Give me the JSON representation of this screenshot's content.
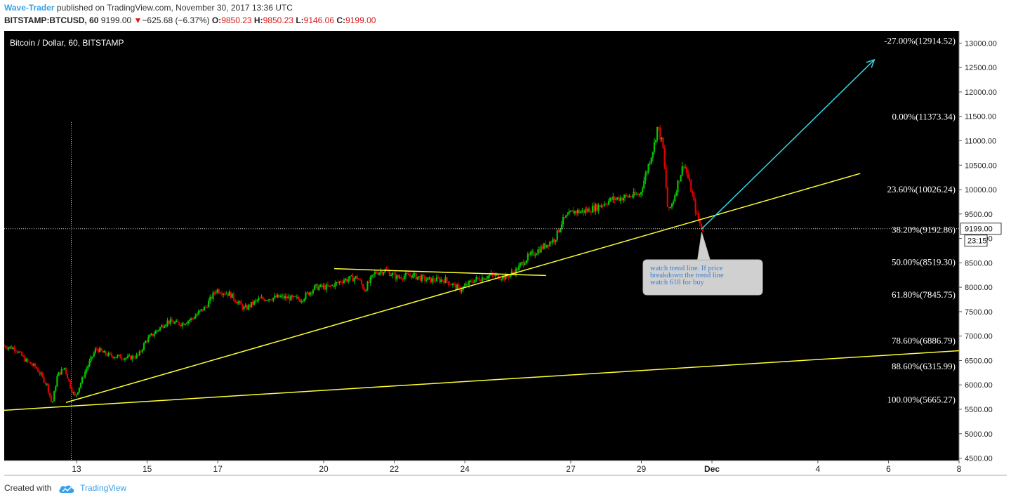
{
  "header": {
    "author": "Wave-Trader",
    "published_text": " published on TradingView.com, November 30, 2017 13:36 UTC",
    "symbol": "BITSTAMP:BTCUSD, 60",
    "last": "9199.00",
    "change_arrow": "▼",
    "change": "−625.68 (−6.37%)",
    "o_label": "O:",
    "o_value": "9850.23",
    "h_label": "H:",
    "h_value": "9850.23",
    "l_label": "L:",
    "l_value": "9146.06",
    "c_label": "C:",
    "c_value": "9199.00"
  },
  "footer": {
    "created_with": "Created with",
    "brand": "TradingView",
    "logo_icon": "tradingview-cloud-icon"
  },
  "colors": {
    "up": "#00c800",
    "down": "#e00000",
    "trend": "#ffff33",
    "arrow": "#33d6e6",
    "bg": "#000000",
    "axis_bg": "#ffffff"
  },
  "chart_data": {
    "type": "candlestick",
    "title": "Bitcoin / Dollar, 60, BITSTAMP",
    "ylim": [
      4450,
      13250
    ],
    "y_ticks": [
      "13000.00",
      "12500.00",
      "12000.00",
      "11500.00",
      "11000.00",
      "10500.00",
      "10000.00",
      "9500.00",
      "9000.00",
      "8500.00",
      "8000.00",
      "7500.00",
      "7000.00",
      "6500.00",
      "6000.00",
      "5500.00",
      "5000.00",
      "4500.00"
    ],
    "x_ticks": [
      {
        "label": "13",
        "day": 13
      },
      {
        "label": "15",
        "day": 15
      },
      {
        "label": "17",
        "day": 17
      },
      {
        "label": "20",
        "day": 20
      },
      {
        "label": "22",
        "day": 22
      },
      {
        "label": "24",
        "day": 24
      },
      {
        "label": "27",
        "day": 27
      },
      {
        "label": "29",
        "day": 29
      },
      {
        "label": "Dec",
        "day": 31
      },
      {
        "label": "4",
        "day": 34
      },
      {
        "label": "6",
        "day": 36
      },
      {
        "label": "8",
        "day": 38
      }
    ],
    "xlim": [
      10.95,
      38.0
    ],
    "price_path": [
      [
        10.95,
        6800
      ],
      [
        11.3,
        6750
      ],
      [
        11.6,
        6500
      ],
      [
        11.9,
        6350
      ],
      [
        12.2,
        6000
      ],
      [
        12.35,
        5600
      ],
      [
        12.5,
        6200
      ],
      [
        12.7,
        6350
      ],
      [
        12.9,
        5900
      ],
      [
        13.0,
        5750
      ],
      [
        13.3,
        6300
      ],
      [
        13.6,
        6750
      ],
      [
        13.8,
        6650
      ],
      [
        14.0,
        6600
      ],
      [
        14.5,
        6550
      ],
      [
        14.8,
        6600
      ],
      [
        15.0,
        6900
      ],
      [
        15.3,
        7100
      ],
      [
        15.6,
        7300
      ],
      [
        16.0,
        7250
      ],
      [
        16.3,
        7350
      ],
      [
        16.7,
        7600
      ],
      [
        17.0,
        7950
      ],
      [
        17.4,
        7850
      ],
      [
        17.8,
        7550
      ],
      [
        18.2,
        7750
      ],
      [
        18.8,
        7800
      ],
      [
        19.4,
        7750
      ],
      [
        19.8,
        8000
      ],
      [
        20.2,
        8000
      ],
      [
        20.6,
        8150
      ],
      [
        21.0,
        8200
      ],
      [
        21.2,
        7950
      ],
      [
        21.5,
        8300
      ],
      [
        21.8,
        8350
      ],
      [
        22.1,
        8200
      ],
      [
        22.5,
        8250
      ],
      [
        23.0,
        8150
      ],
      [
        23.5,
        8150
      ],
      [
        23.9,
        7950
      ],
      [
        24.3,
        8150
      ],
      [
        24.8,
        8250
      ],
      [
        25.2,
        8200
      ],
      [
        25.5,
        8350
      ],
      [
        25.8,
        8600
      ],
      [
        26.2,
        8800
      ],
      [
        26.6,
        9000
      ],
      [
        26.8,
        9350
      ],
      [
        27.1,
        9550
      ],
      [
        27.4,
        9550
      ],
      [
        27.8,
        9650
      ],
      [
        28.2,
        9800
      ],
      [
        28.6,
        9850
      ],
      [
        29.0,
        9900
      ],
      [
        29.2,
        10400
      ],
      [
        29.4,
        10900
      ],
      [
        29.5,
        11300
      ],
      [
        29.65,
        10900
      ],
      [
        29.8,
        9500
      ],
      [
        29.95,
        9800
      ],
      [
        30.1,
        10200
      ],
      [
        30.25,
        10550
      ],
      [
        30.45,
        10000
      ],
      [
        30.6,
        9500
      ],
      [
        30.75,
        9199
      ]
    ],
    "trend_lines": [
      {
        "from": [
          12.7,
          5640
        ],
        "to": [
          35.2,
          10330
        ]
      },
      {
        "from": [
          10.95,
          5480
        ],
        "to": [
          38.0,
          6700
        ]
      },
      {
        "from": [
          20.3,
          8380
        ],
        "to": [
          26.3,
          8240
        ]
      }
    ],
    "arrow": {
      "from": [
        30.7,
        9190
      ],
      "to": [
        35.6,
        12660
      ]
    },
    "fib_levels": [
      {
        "label": "-27.00%(12914.52)",
        "y": 13040
      },
      {
        "label": "0.00%(11373.34)",
        "y": 11490
      },
      {
        "label": "23.60%(10026.24)",
        "y": 10000
      },
      {
        "label": "38.20%(9192.86)",
        "y": 9170
      },
      {
        "label": "50.00%(8519.30)",
        "y": 8515
      },
      {
        "label": "61.80%(7845.75)",
        "y": 7845
      },
      {
        "label": "78.60%(6886.79)",
        "y": 6905
      },
      {
        "label": "88.60%(6315.99)",
        "y": 6375
      },
      {
        "label": "100.00%(5665.27)",
        "y": 5693
      }
    ],
    "vline_day": 12.85,
    "last_price": {
      "value": 9199,
      "label": "9199.00",
      "countdown": "23:15"
    },
    "annotation": {
      "text_lines": [
        "watch trend line. If price",
        "breakdown the trend line",
        "watch 618 for buy"
      ],
      "anchor": [
        30.75,
        9050
      ]
    }
  }
}
